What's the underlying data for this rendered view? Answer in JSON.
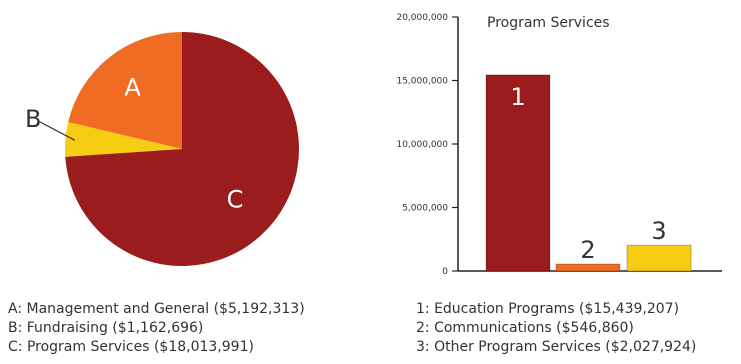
{
  "colors": {
    "dark_red": "#9b1c1c",
    "orange": "#ef6c22",
    "yellow": "#f7cc15",
    "axis": "#222222",
    "text": "#333333"
  },
  "chart_data": [
    {
      "type": "pie",
      "title": "",
      "slices": [
        {
          "label": "A",
          "name": "Management and General",
          "value": 5192313,
          "color": "#ef6c22"
        },
        {
          "label": "B",
          "name": "Fundraising",
          "value": 1162696,
          "color": "#f7cc15"
        },
        {
          "label": "C",
          "name": "Program Services",
          "value": 18013991,
          "color": "#9b1c1c"
        }
      ],
      "legend": [
        "A: Management and General ($5,192,313)",
        "B: Fundraising ($1,162,696)",
        "C: Program Services ($18,013,991)"
      ],
      "legend_placement": "bottom"
    },
    {
      "type": "bar",
      "title": "Program Services",
      "categories": [
        "1",
        "2",
        "3"
      ],
      "values": [
        15439207,
        546860,
        2027924
      ],
      "colors": [
        "#9b1c1c",
        "#ef6c22",
        "#f7cc15"
      ],
      "ylim": [
        0,
        20000000
      ],
      "yticks": [
        0,
        5000000,
        10000000,
        15000000,
        20000000
      ],
      "ytick_labels": [
        "0",
        "5,000,000",
        "10,000,000",
        "15,000,000",
        "20,000,000"
      ],
      "xlabel": "",
      "ylabel": "",
      "grid": false,
      "legend": [
        "1: Education Programs ($15,439,207)",
        "2: Communications ($546,860)",
        "3: Other Program Services ($2,027,924)"
      ],
      "legend_placement": "bottom"
    }
  ]
}
